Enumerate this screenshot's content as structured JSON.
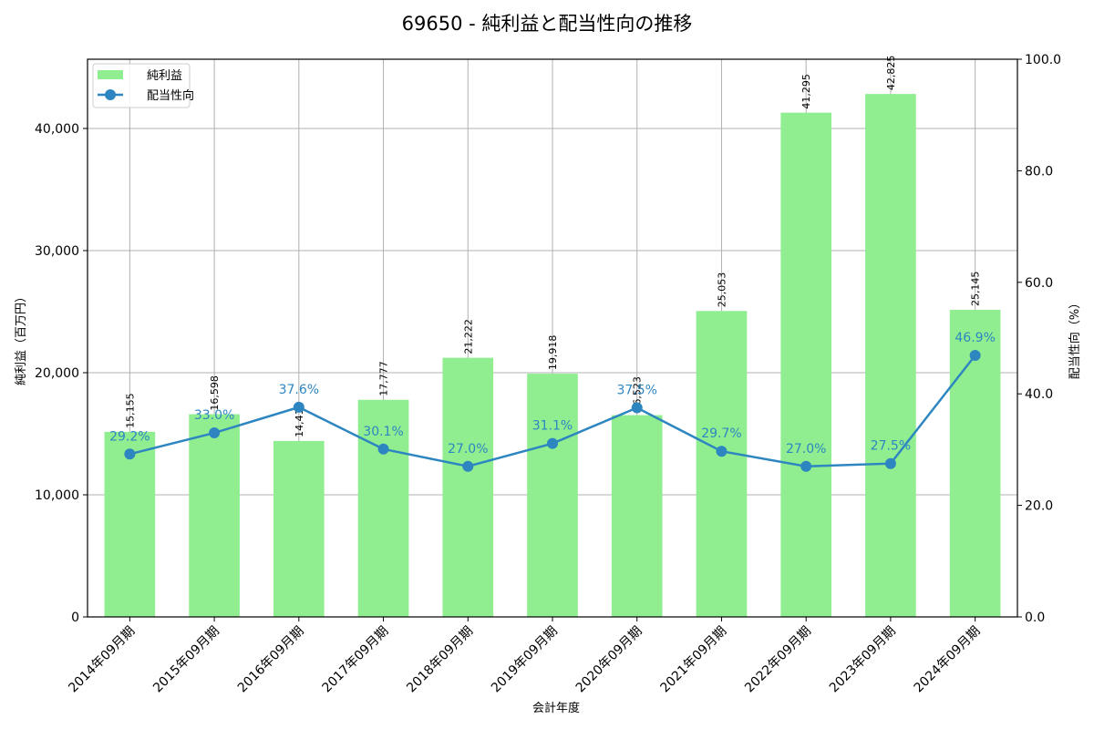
{
  "chart_data": {
    "type": "bar+line",
    "title": "69650 - 純利益と配当性向の推移",
    "xlabel": "会計年度",
    "ylabel": "純利益（百万円）",
    "y2label": "配当性向（%）",
    "categories": [
      "2014年09月期",
      "2015年09月期",
      "2016年09月期",
      "2017年09月期",
      "2018年09月期",
      "2019年09月期",
      "2020年09月期",
      "2021年09月期",
      "2022年09月期",
      "2023年09月期",
      "2024年09月期"
    ],
    "series": [
      {
        "name": "純利益",
        "type": "bar",
        "axis": "left",
        "color": "#90ee90",
        "values": [
          15155,
          16598,
          14411,
          17777,
          21222,
          19918,
          16523,
          25053,
          41295,
          42825,
          25145
        ],
        "labels": [
          "15,155",
          "16,598",
          "14,411",
          "17,777",
          "21,222",
          "19,918",
          "16,523",
          "25,053",
          "41,295",
          "42,825",
          "25,145"
        ]
      },
      {
        "name": "配当性向",
        "type": "line",
        "axis": "right",
        "color": "#2e86c1",
        "values": [
          29.2,
          33.0,
          37.6,
          30.1,
          27.0,
          31.1,
          37.5,
          29.7,
          27.0,
          27.5,
          46.9
        ],
        "labels": [
          "29.2%",
          "33.0%",
          "37.6%",
          "30.1%",
          "27.0%",
          "31.1%",
          "37.5%",
          "29.7%",
          "27.0%",
          "27.5%",
          "46.9%"
        ]
      }
    ],
    "ylim": [
      0,
      45670
    ],
    "yticks": [
      0,
      10000,
      20000,
      30000,
      40000
    ],
    "ytick_labels": [
      "0",
      "10,000",
      "20,000",
      "30,000",
      "40,000"
    ],
    "y2lim": [
      0,
      100
    ],
    "y2ticks": [
      0,
      20,
      40,
      60,
      80,
      100
    ],
    "y2tick_labels": [
      "0.0",
      "20.0",
      "40.0",
      "60.0",
      "80.0",
      "100.0"
    ],
    "grid": true,
    "legend_position": "upper left"
  }
}
